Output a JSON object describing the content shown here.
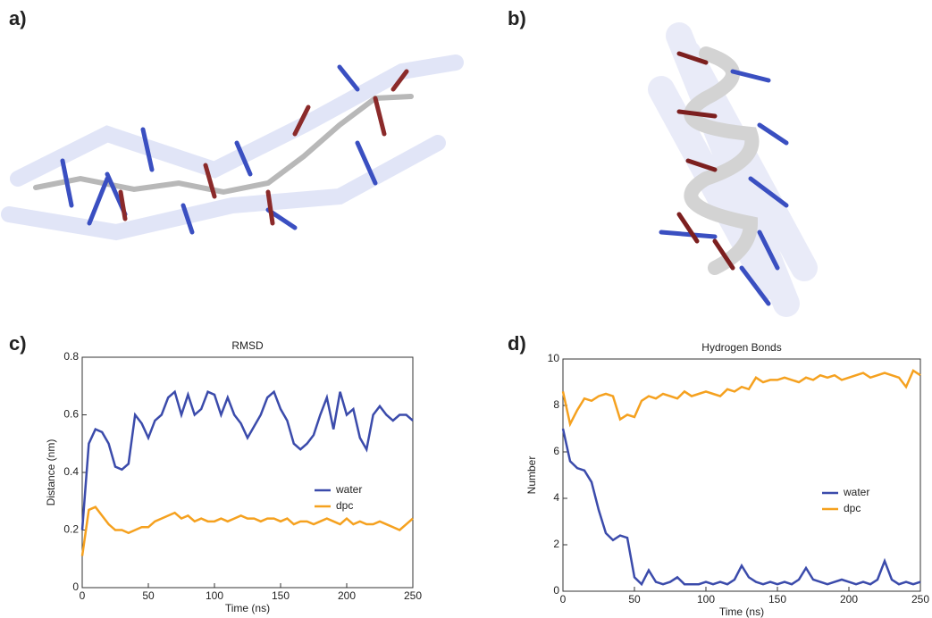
{
  "panel_labels": [
    "a)",
    "b)",
    "c)",
    "d)"
  ],
  "chart_data": [
    {
      "type": "line",
      "title": "RMSD",
      "x_label": "Time (ns)",
      "y_label": "Distance (nm)",
      "x": [
        0,
        5,
        10,
        15,
        20,
        25,
        30,
        35,
        40,
        45,
        50,
        55,
        60,
        65,
        70,
        75,
        80,
        85,
        90,
        95,
        100,
        105,
        110,
        115,
        120,
        125,
        130,
        135,
        140,
        145,
        150,
        155,
        160,
        165,
        170,
        175,
        180,
        185,
        190,
        195,
        200,
        205,
        210,
        215,
        220,
        225,
        230,
        235,
        240,
        245,
        250
      ],
      "series": [
        {
          "name": "water",
          "color": "#3b4bab",
          "values": [
            0.2,
            0.5,
            0.55,
            0.54,
            0.5,
            0.42,
            0.41,
            0.43,
            0.6,
            0.57,
            0.52,
            0.58,
            0.6,
            0.66,
            0.68,
            0.6,
            0.67,
            0.6,
            0.62,
            0.68,
            0.67,
            0.6,
            0.66,
            0.6,
            0.57,
            0.52,
            0.56,
            0.6,
            0.66,
            0.68,
            0.62,
            0.58,
            0.5,
            0.48,
            0.5,
            0.53,
            0.6,
            0.66,
            0.55,
            0.68,
            0.6,
            0.62,
            0.52,
            0.48,
            0.6,
            0.63,
            0.6,
            0.58,
            0.6,
            0.6,
            0.58
          ]
        },
        {
          "name": "dpc",
          "color": "#f5a11f",
          "values": [
            0.11,
            0.27,
            0.28,
            0.25,
            0.22,
            0.2,
            0.2,
            0.19,
            0.2,
            0.21,
            0.21,
            0.23,
            0.24,
            0.25,
            0.26,
            0.24,
            0.25,
            0.23,
            0.24,
            0.23,
            0.23,
            0.24,
            0.23,
            0.24,
            0.25,
            0.24,
            0.24,
            0.23,
            0.24,
            0.24,
            0.23,
            0.24,
            0.22,
            0.23,
            0.23,
            0.22,
            0.23,
            0.24,
            0.23,
            0.22,
            0.24,
            0.22,
            0.23,
            0.22,
            0.22,
            0.23,
            0.22,
            0.21,
            0.2,
            0.22,
            0.24
          ]
        }
      ],
      "xlim": [
        0,
        250
      ],
      "xticks": [
        0,
        50,
        100,
        150,
        200,
        250
      ],
      "ylim": [
        0,
        0.8
      ],
      "yticks": [
        0,
        0.2,
        0.4,
        0.6,
        0.8
      ],
      "legend": "right"
    },
    {
      "type": "line",
      "title": "Hydrogen Bonds",
      "x_label": "Time (ns)",
      "y_label": "Number",
      "x": [
        0,
        5,
        10,
        15,
        20,
        25,
        30,
        35,
        40,
        45,
        50,
        55,
        60,
        65,
        70,
        75,
        80,
        85,
        90,
        95,
        100,
        105,
        110,
        115,
        120,
        125,
        130,
        135,
        140,
        145,
        150,
        155,
        160,
        165,
        170,
        175,
        180,
        185,
        190,
        195,
        200,
        205,
        210,
        215,
        220,
        225,
        230,
        235,
        240,
        245,
        250
      ],
      "series": [
        {
          "name": "water",
          "color": "#3b4bab",
          "values": [
            7,
            5.6,
            5.3,
            5.2,
            4.7,
            3.5,
            2.5,
            2.2,
            2.4,
            2.3,
            0.6,
            0.3,
            0.9,
            0.4,
            0.3,
            0.4,
            0.6,
            0.3,
            0.3,
            0.3,
            0.4,
            0.3,
            0.4,
            0.3,
            0.5,
            1.1,
            0.6,
            0.4,
            0.3,
            0.4,
            0.3,
            0.4,
            0.3,
            0.5,
            1,
            0.5,
            0.4,
            0.3,
            0.4,
            0.5,
            0.4,
            0.3,
            0.4,
            0.3,
            0.5,
            1.3,
            0.5,
            0.3,
            0.4,
            0.3,
            0.4
          ]
        },
        {
          "name": "dpc",
          "color": "#f5a11f",
          "values": [
            8.6,
            7.2,
            7.8,
            8.3,
            8.2,
            8.4,
            8.5,
            8.4,
            7.4,
            7.6,
            7.5,
            8.2,
            8.4,
            8.3,
            8.5,
            8.4,
            8.3,
            8.6,
            8.4,
            8.5,
            8.6,
            8.5,
            8.4,
            8.7,
            8.6,
            8.8,
            8.7,
            9.2,
            9,
            9.1,
            9.1,
            9.2,
            9.1,
            9,
            9.2,
            9.1,
            9.3,
            9.2,
            9.3,
            9.1,
            9.2,
            9.3,
            9.4,
            9.2,
            9.3,
            9.4,
            9.3,
            9.2,
            8.8,
            9.5,
            9.3
          ]
        }
      ],
      "xlim": [
        0,
        250
      ],
      "xticks": [
        0,
        50,
        100,
        150,
        200,
        250
      ],
      "ylim": [
        0,
        10
      ],
      "yticks": [
        0,
        2,
        4,
        6,
        8,
        10
      ],
      "legend": "right"
    }
  ]
}
